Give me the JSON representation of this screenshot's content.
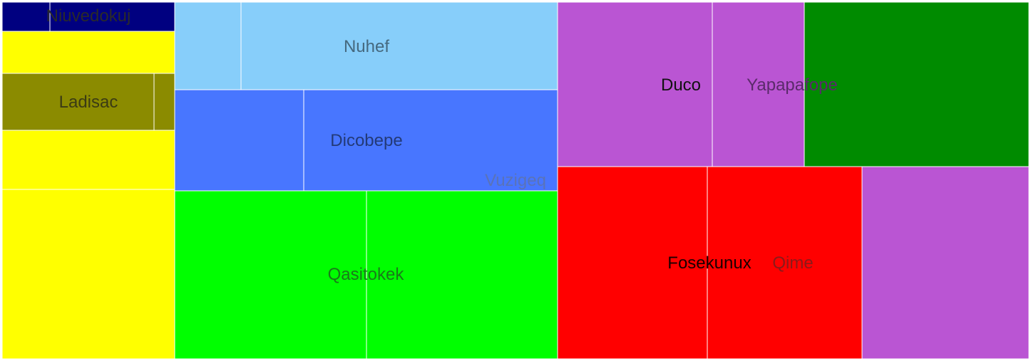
{
  "colors": {
    "navy": "#000080",
    "yellow": "#ffff00",
    "olive": "#8b8b00",
    "lightblue": "#87cefa",
    "blue": "#4876ff",
    "green": "#00ff00",
    "orchid": "#ba55d3",
    "darkgreen": "#008b00",
    "red": "#ff0000"
  },
  "chart_data": {
    "type": "treemap",
    "labels": [
      {
        "id": "niuvedokuj",
        "text": "Niuvedokuj"
      },
      {
        "id": "ladisac",
        "text": "Ladisac"
      },
      {
        "id": "nuhef",
        "text": "Nuhef"
      },
      {
        "id": "dicobepe",
        "text": "Dicobepe"
      },
      {
        "id": "vuzigeq",
        "text": "Vuzigeq"
      },
      {
        "id": "qasitokek",
        "text": "Qasitokek"
      },
      {
        "id": "duco",
        "text": "Duco"
      },
      {
        "id": "yapapafope",
        "text": "Yapapafope"
      },
      {
        "id": "fosekunux",
        "text": "Fosekunux"
      },
      {
        "id": "qime",
        "text": "Qime"
      }
    ],
    "legend": "none",
    "grid": false
  }
}
